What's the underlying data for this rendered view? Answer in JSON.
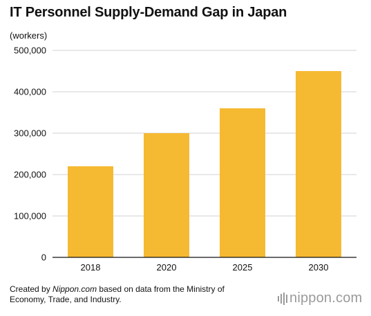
{
  "header": {
    "title": "IT Personnel Supply-Demand Gap in Japan",
    "unit": "(workers)"
  },
  "footer": {
    "credit_prefix": "Created by ",
    "credit_site": "Nippon.com",
    "credit_suffix": " based on data from the Ministry of Economy, Trade, and Industry."
  },
  "logo": {
    "name": "nippon-logo",
    "text": "nippon.com"
  },
  "colors": {
    "bar": "#F6B932",
    "grid": "#d2d2d2",
    "axis": "#111111"
  },
  "chart_data": {
    "type": "bar",
    "title": "IT Personnel Supply-Demand Gap in Japan",
    "xlabel": "",
    "ylabel": "(workers)",
    "categories": [
      "2018",
      "2020",
      "2025",
      "2030"
    ],
    "values": [
      220000,
      300000,
      360000,
      450000
    ],
    "ylim": [
      0,
      500000
    ],
    "yticks": [
      0,
      100000,
      200000,
      300000,
      400000,
      500000
    ],
    "ytick_labels": [
      "0",
      "100,000",
      "200,000",
      "300,000",
      "400,000",
      "500,000"
    ],
    "grid": true,
    "legend": "none"
  }
}
